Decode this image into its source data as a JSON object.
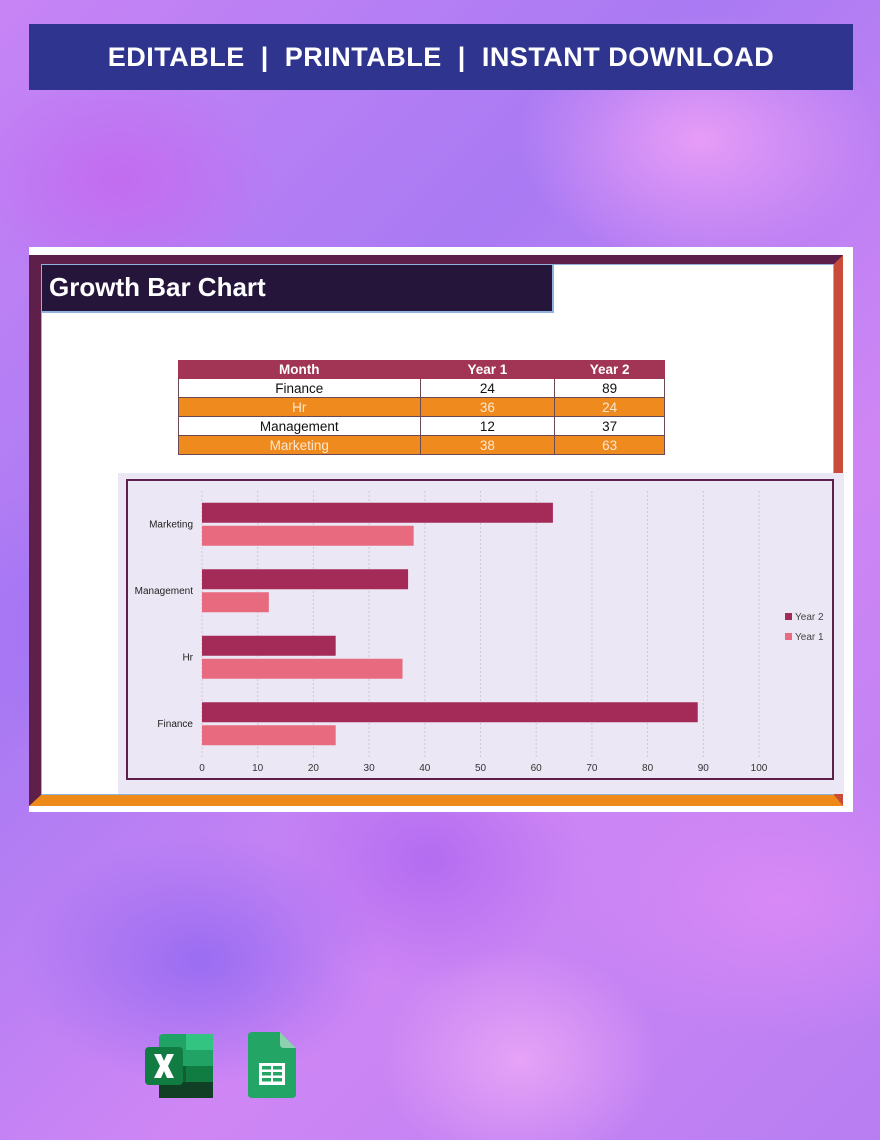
{
  "banner": {
    "text": "EDITABLE  |  PRINTABLE  |  INSTANT DOWNLOAD"
  },
  "sheet": {
    "title": "Growth Bar Chart"
  },
  "table": {
    "headers": [
      "Month",
      "Year 1",
      "Year 2"
    ],
    "rows": [
      [
        "Finance",
        "24",
        "89"
      ],
      [
        "Hr",
        "36",
        "24"
      ],
      [
        "Management",
        "12",
        "37"
      ],
      [
        "Marketing",
        "38",
        "63"
      ]
    ]
  },
  "chart_data": {
    "type": "bar",
    "orientation": "horizontal",
    "categories": [
      "Finance",
      "Hr",
      "Management",
      "Marketing"
    ],
    "series": [
      {
        "name": "Year 1",
        "values": [
          24,
          36,
          12,
          38
        ],
        "color": "#e76a7e"
      },
      {
        "name": "Year 2",
        "values": [
          89,
          24,
          37,
          63
        ],
        "color": "#a42a57"
      }
    ],
    "xlim": [
      0,
      100
    ],
    "xticks": [
      0,
      10,
      20,
      30,
      40,
      50,
      60,
      70,
      80,
      90,
      100
    ],
    "grid": true,
    "legend": "right",
    "legend_order": [
      "Year 2",
      "Year 1"
    ]
  },
  "icons": {
    "excel": "excel-icon",
    "sheets": "google-sheets-icon"
  },
  "colors": {
    "banner": "#2f358f",
    "title_bar": "#25153b",
    "frame_left": "#5e1f4a",
    "frame_right": "#c94b39",
    "frame_bottom": "#ee8a1a",
    "table_header": "#a23556",
    "table_alt_row": "#ef8b1e"
  }
}
